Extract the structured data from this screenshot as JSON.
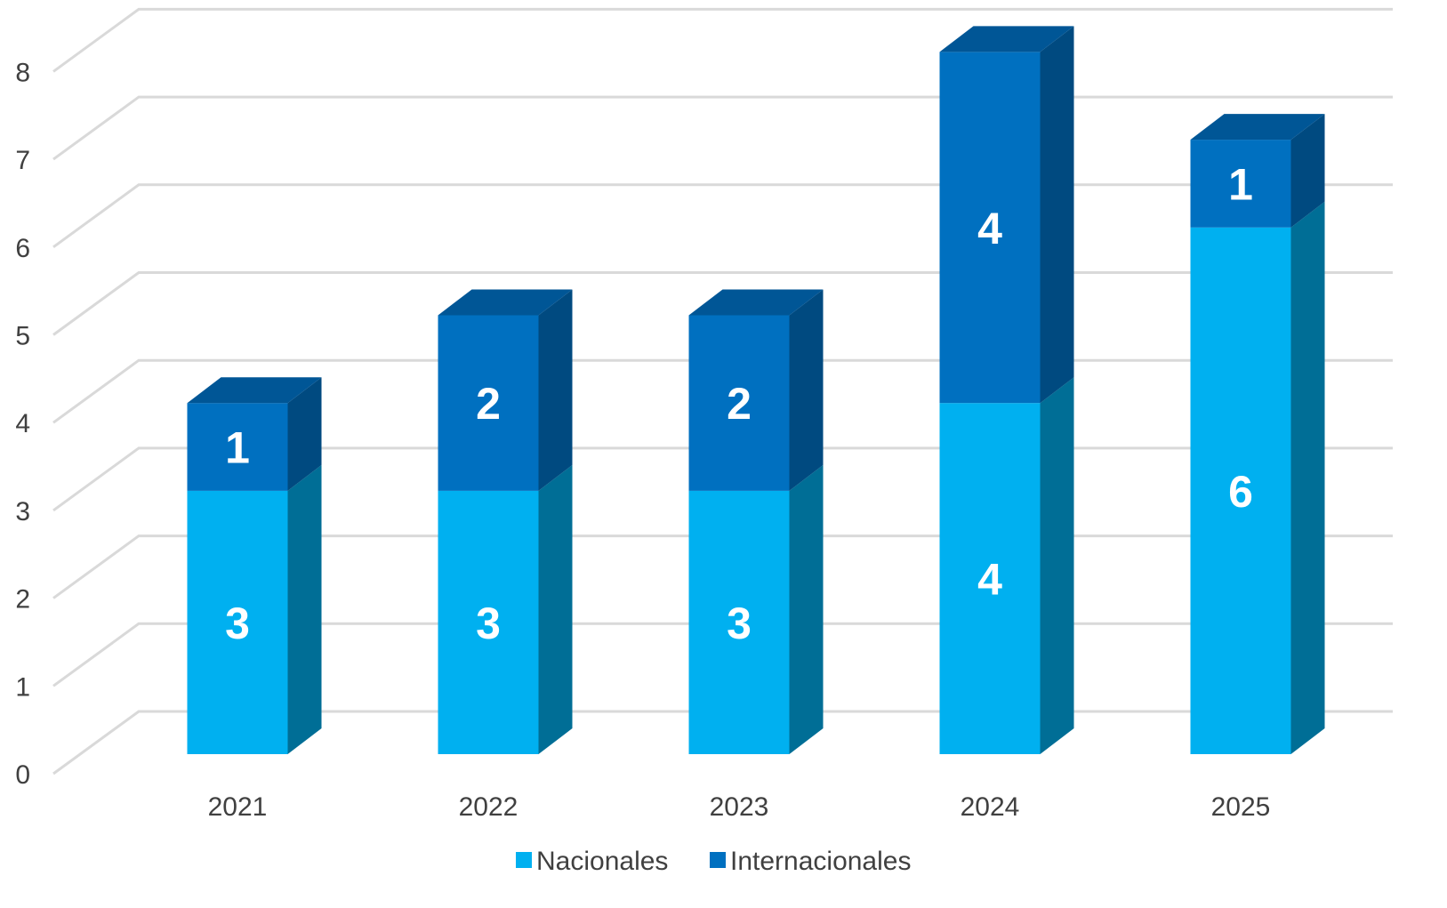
{
  "chart_data": {
    "type": "bar",
    "stacked": true,
    "three_d": true,
    "categories": [
      "2021",
      "2022",
      "2023",
      "2024",
      "2025"
    ],
    "series": [
      {
        "name": "Nacionales",
        "values": [
          3,
          3,
          3,
          4,
          6
        ],
        "color": "#00B0F0",
        "side_color": "#006E96",
        "top_color": "#0090C8"
      },
      {
        "name": "Internacionales",
        "values": [
          1,
          2,
          2,
          4,
          1
        ],
        "color": "#0070C0",
        "side_color": "#004A80",
        "top_color": "#005696"
      }
    ],
    "ylim": [
      0,
      8
    ],
    "yticks": [
      "0",
      "1",
      "2",
      "3",
      "4",
      "5",
      "6",
      "7",
      "8"
    ],
    "grid": true,
    "legend_position": "bottom",
    "data_labels": true
  }
}
